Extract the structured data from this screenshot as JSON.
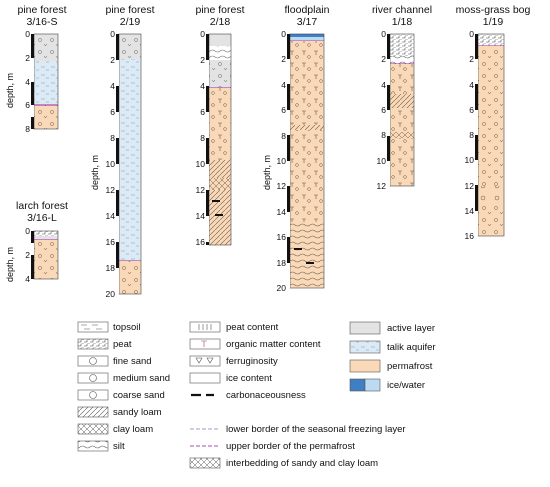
{
  "columns": [
    {
      "id": "pine-316s",
      "title": [
        "pine forest",
        "3/16-S"
      ],
      "axis_label": "depth, m",
      "ticks": [
        "0",
        "2",
        "4",
        "6",
        "8"
      ]
    },
    {
      "id": "larch-316l",
      "title": [
        "larch forest",
        "3/16-L"
      ],
      "axis_label": "depth, m",
      "ticks": [
        "0",
        "2",
        "4"
      ]
    },
    {
      "id": "pine-219",
      "title": [
        "pine forest",
        "2/19"
      ],
      "axis_label": "depth, m",
      "ticks": [
        "0",
        "2",
        "4",
        "6",
        "8",
        "10",
        "12",
        "14",
        "16",
        "18",
        "20"
      ]
    },
    {
      "id": "pine-218",
      "title": [
        "pine forest",
        "2/18"
      ],
      "axis_label": "",
      "ticks": [
        "0",
        "2",
        "4",
        "6",
        "8",
        "10",
        "12",
        "14",
        "16"
      ]
    },
    {
      "id": "floodplain-317",
      "title": [
        "floodplain",
        "3/17"
      ],
      "axis_label": "depth, m",
      "ticks": [
        "0",
        "2",
        "4",
        "6",
        "8",
        "10",
        "12",
        "14",
        "16",
        "18",
        "20"
      ]
    },
    {
      "id": "river-118",
      "title": [
        "river channel",
        "1/18"
      ],
      "axis_label": "",
      "ticks": [
        "0",
        "2",
        "4",
        "6",
        "8",
        "10",
        "12"
      ]
    },
    {
      "id": "bog-119",
      "title": [
        "moss-grass bog",
        "1/19"
      ],
      "axis_label": "",
      "ticks": [
        "0",
        "2",
        "4",
        "6",
        "8",
        "10",
        "12",
        "14",
        "16"
      ]
    }
  ],
  "legend": {
    "col1": [
      "topsoil",
      "peat",
      "fine sand",
      "medium sand",
      "coarse sand",
      "sandy loam",
      "clay loam",
      "silt"
    ],
    "col2": [
      "peat content",
      "organic matter content",
      "ferruginosity",
      "ice content",
      "carbonaceousness",
      "lower border of the seasonal freezing layer",
      "upper border of the permafrost",
      "interbedding of sandy and clay loam"
    ],
    "col3": [
      "active layer",
      "talik aquifer",
      "permafrost",
      "ice/water"
    ]
  },
  "colors": {
    "active_layer": "#e3e3e3",
    "talik_aquifer": "#dceaf5",
    "permafrost": "#f9d9b8",
    "ice_water_dark": "#3f7fc4",
    "ice_water_light": "#bcdaf2",
    "seasonal_border": "#9b9bd6",
    "permafrost_border": "#b04bb0"
  }
}
